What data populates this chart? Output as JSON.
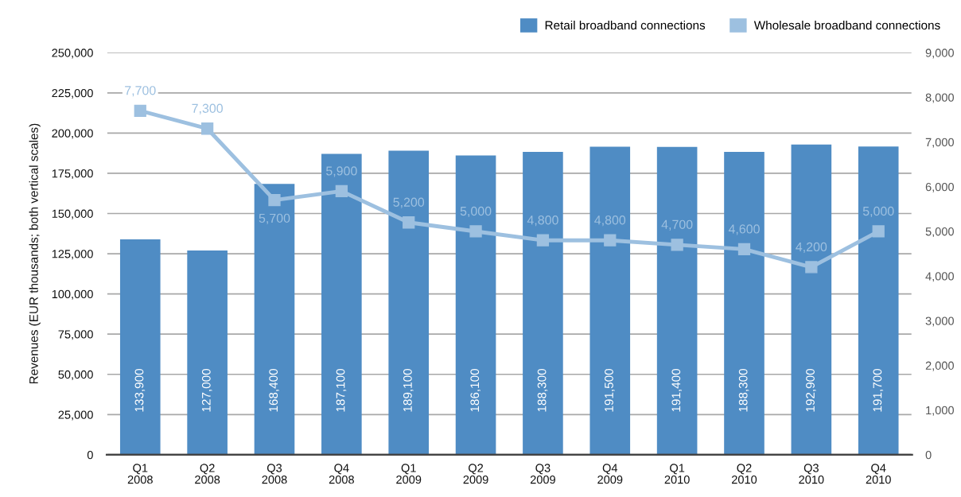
{
  "chart_data": {
    "type": "bar",
    "categories": [
      "Q1\n2008",
      "Q2\n2008",
      "Q3\n2008",
      "Q4\n2008",
      "Q1\n2009",
      "Q2\n2009",
      "Q3\n2009",
      "Q4\n2009",
      "Q1\n2010",
      "Q2\n2010",
      "Q3\n2010",
      "Q4\n2010"
    ],
    "series": [
      {
        "name": "Retail broadband connections",
        "color": "#4f8cc4",
        "values": [
          133900,
          127000,
          168400,
          187100,
          189100,
          186100,
          188300,
          191500,
          191400,
          188300,
          192900,
          191700
        ],
        "value_labels": [
          "133,900",
          "127,000",
          "168,400",
          "187,100",
          "189,100",
          "186,100",
          "188,300",
          "191,500",
          "191,400",
          "188,300",
          "192,900",
          "191,700"
        ]
      },
      {
        "name": "Wholesale broadband connections",
        "type": "line",
        "axis": "y2",
        "color": "#9dc0e0",
        "marker": "square",
        "line_style": "solid",
        "values": [
          7700,
          7300,
          5700,
          5900,
          5200,
          5000,
          4800,
          4800,
          4700,
          4600,
          4200,
          5000
        ],
        "value_labels": [
          "7,700",
          "7,300",
          "5,700",
          "5,900",
          "5,200",
          "5,000",
          "4,800",
          "4,800",
          "4,700",
          "4,600",
          "4,200",
          "5,000"
        ]
      }
    ],
    "ylabel": "Revenues (EUR thousands; both vertical scales)",
    "ylim": [
      0,
      250000
    ],
    "yticks": [
      0,
      {
        "value": 25000,
        "label": "25,000"
      },
      {
        "value": 50000,
        "label": "50,000"
      },
      {
        "value": 75000,
        "label": "75,000"
      },
      {
        "value": 100000,
        "label": "100,000"
      },
      {
        "value": 125000,
        "label": "125,000"
      },
      {
        "value": 150000,
        "label": "150,000"
      },
      {
        "value": 175000,
        "label": "175,000"
      },
      {
        "value": 200000,
        "label": "200,000"
      },
      {
        "value": 225000,
        "label": "225,000"
      },
      {
        "value": 250000,
        "label": "250,000"
      }
    ],
    "y2lim": [
      0,
      9000
    ],
    "y2ticks": [
      0,
      {
        "value": 1000,
        "label": "1,000"
      },
      {
        "value": 2000,
        "label": "2,000"
      },
      {
        "value": 3000,
        "label": "3,000"
      },
      {
        "value": 4000,
        "label": "4,000"
      },
      {
        "value": 5000,
        "label": "5,000"
      },
      {
        "value": 6000,
        "label": "6,000"
      },
      {
        "value": 7000,
        "label": "7,000"
      },
      {
        "value": 8000,
        "label": "8,000"
      },
      {
        "value": 9000,
        "label": "9,000"
      }
    ],
    "grid": "y",
    "legend": "top right"
  }
}
